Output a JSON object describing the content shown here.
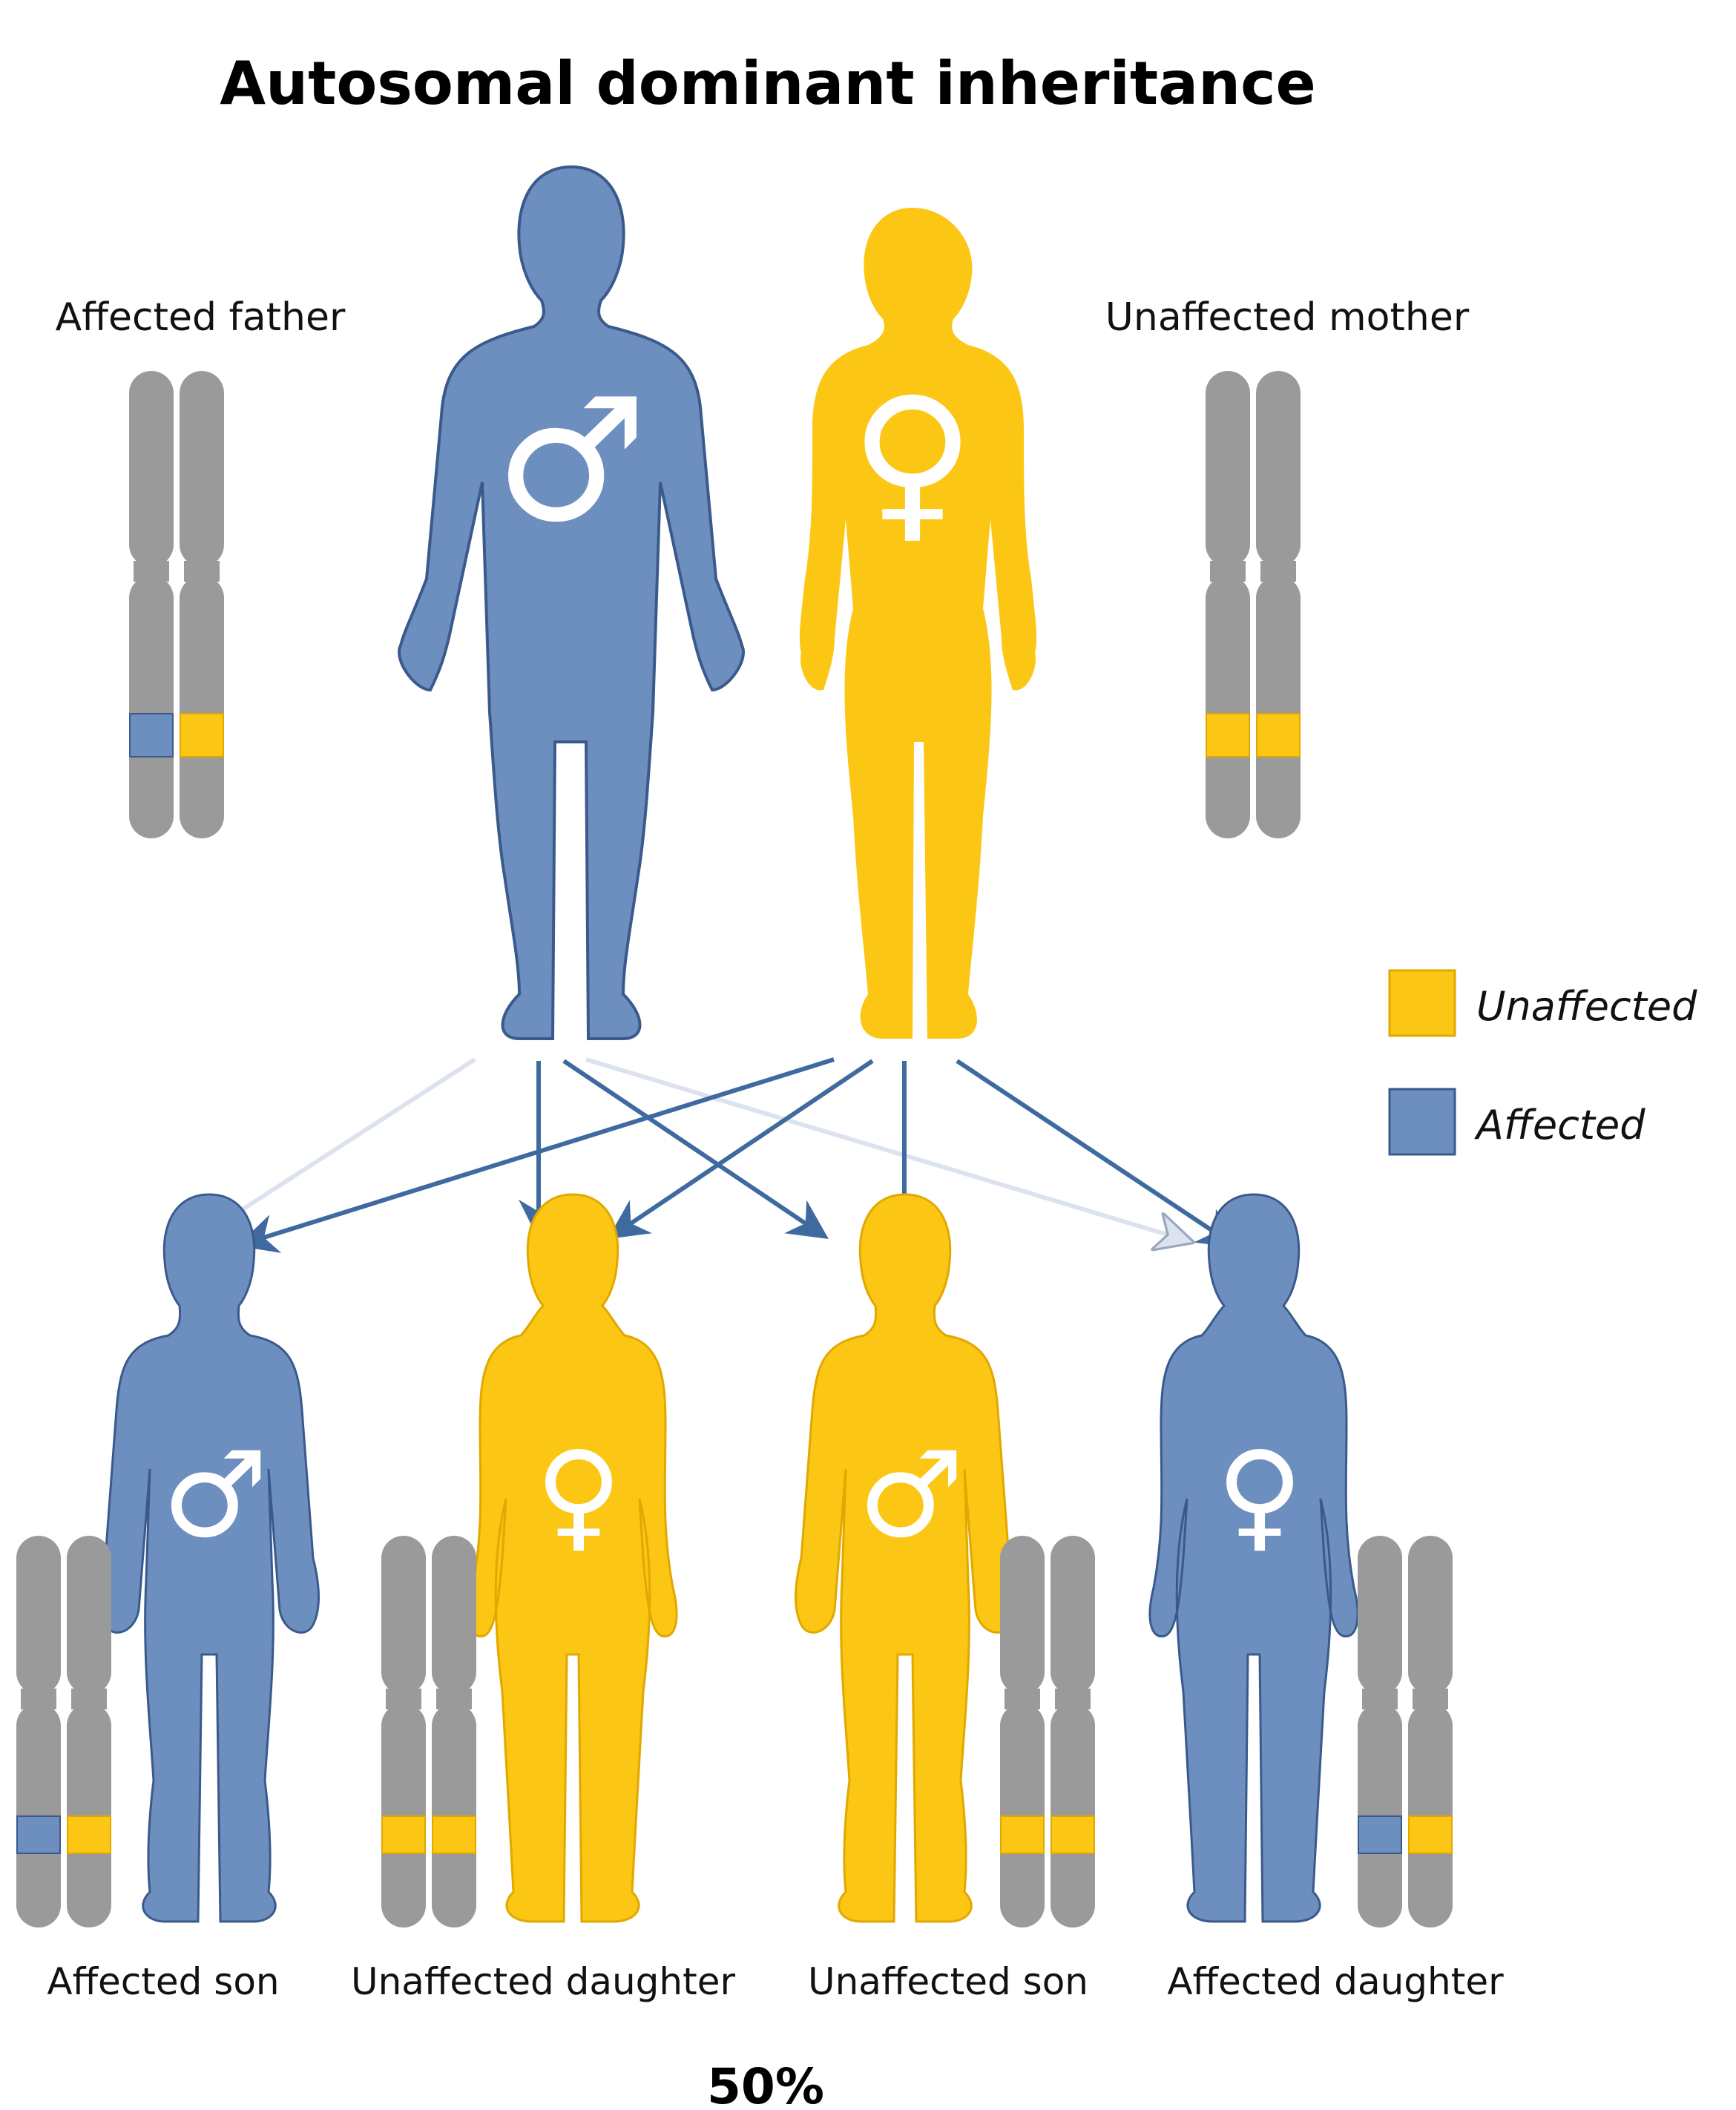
{
  "title": "Autosomal dominant inheritance",
  "colors": {
    "affected": "#6d8fbf",
    "affected_outline": "#3a5a8c",
    "unaffected": "#fcc614",
    "unaffected_outline": "#e0a800",
    "chromosome": "#9a9a9a",
    "arrow": "#3f6aa0",
    "arrow_light": "#dde3ee"
  },
  "parents": [
    {
      "label": "Affected father",
      "status": "affected",
      "sex": "male",
      "symbol": "♂",
      "alleles": [
        "affected",
        "unaffected"
      ]
    },
    {
      "label": "Unaffected mother",
      "status": "unaffected",
      "sex": "female",
      "symbol": "♀",
      "alleles": [
        "unaffected",
        "unaffected"
      ]
    }
  ],
  "children": [
    {
      "label": "Affected son",
      "status": "affected",
      "sex": "male",
      "symbol": "♂",
      "alleles": [
        "affected",
        "unaffected"
      ]
    },
    {
      "label": "Unaffected daughter",
      "status": "unaffected",
      "sex": "female",
      "symbol": "♀",
      "alleles": [
        "unaffected",
        "unaffected"
      ]
    },
    {
      "label": "Unaffected son",
      "status": "unaffected",
      "sex": "male",
      "symbol": "♂",
      "alleles": [
        "unaffected",
        "unaffected"
      ]
    },
    {
      "label": "Affected daughter",
      "status": "affected",
      "sex": "female",
      "symbol": "♀",
      "alleles": [
        "affected",
        "unaffected"
      ]
    }
  ],
  "legend": [
    {
      "label": "Unaffected",
      "status": "unaffected"
    },
    {
      "label": "Affected",
      "status": "affected"
    }
  ],
  "probability": "50%"
}
